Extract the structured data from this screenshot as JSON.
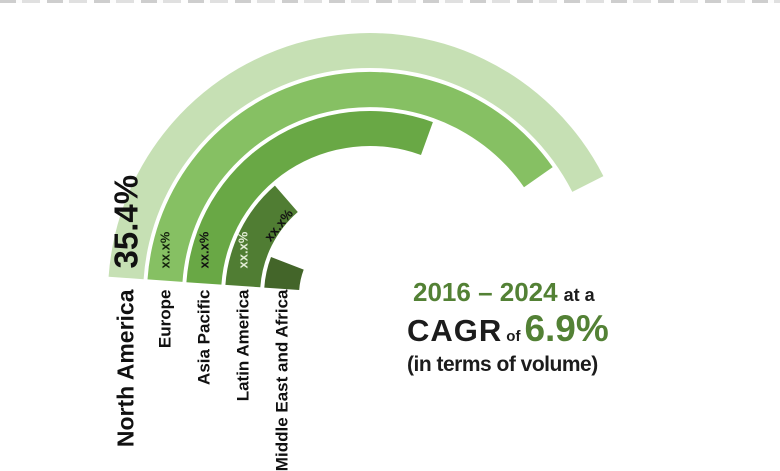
{
  "chart_data": {
    "type": "pie",
    "subtype": "multi-ring-half-donut",
    "description": "Concentric clockwise arcs starting at the lower left; arc length encodes regional market share",
    "start_angle_deg_clockwise_from_top": 274,
    "legend_position": "labels below arc start, rotated vertically",
    "grid": false,
    "rings_outer_to_inner": [
      {
        "name": "North America",
        "value_label": "35.4%",
        "value_pct": 35.4,
        "sweep_deg": 149,
        "color": "#c6e0b4",
        "value_label_color": "#111111"
      },
      {
        "name": "Europe",
        "value_label": "xx.x%",
        "value_pct": null,
        "sweep_deg": 141,
        "color": "#86c063",
        "value_label_color": "#15240d"
      },
      {
        "name": "Asia Pacific",
        "value_label": "xx.x%",
        "value_pct": null,
        "sweep_deg": 106,
        "color": "#69a845",
        "value_label_color": "#111111"
      },
      {
        "name": "Latin America",
        "value_label": "xx.x%",
        "value_pct": null,
        "sweep_deg": 45,
        "color": "#507d33",
        "value_label_color": "#e2edd5"
      },
      {
        "name": "Middle East and Africa",
        "value_label": "xx.x%",
        "value_pct": null,
        "sweep_deg": 17,
        "color": "#436529",
        "value_label_color": "#111111"
      }
    ],
    "name_label_color": "#111111"
  },
  "cagr": {
    "period": "2016 – 2024",
    "connector": "at a",
    "metric": "CAGR",
    "preposition": "of",
    "value": "6.9%",
    "note": "(in terms of volume)",
    "accent_color": "#538135",
    "text_color": "#1c1c1c"
  }
}
